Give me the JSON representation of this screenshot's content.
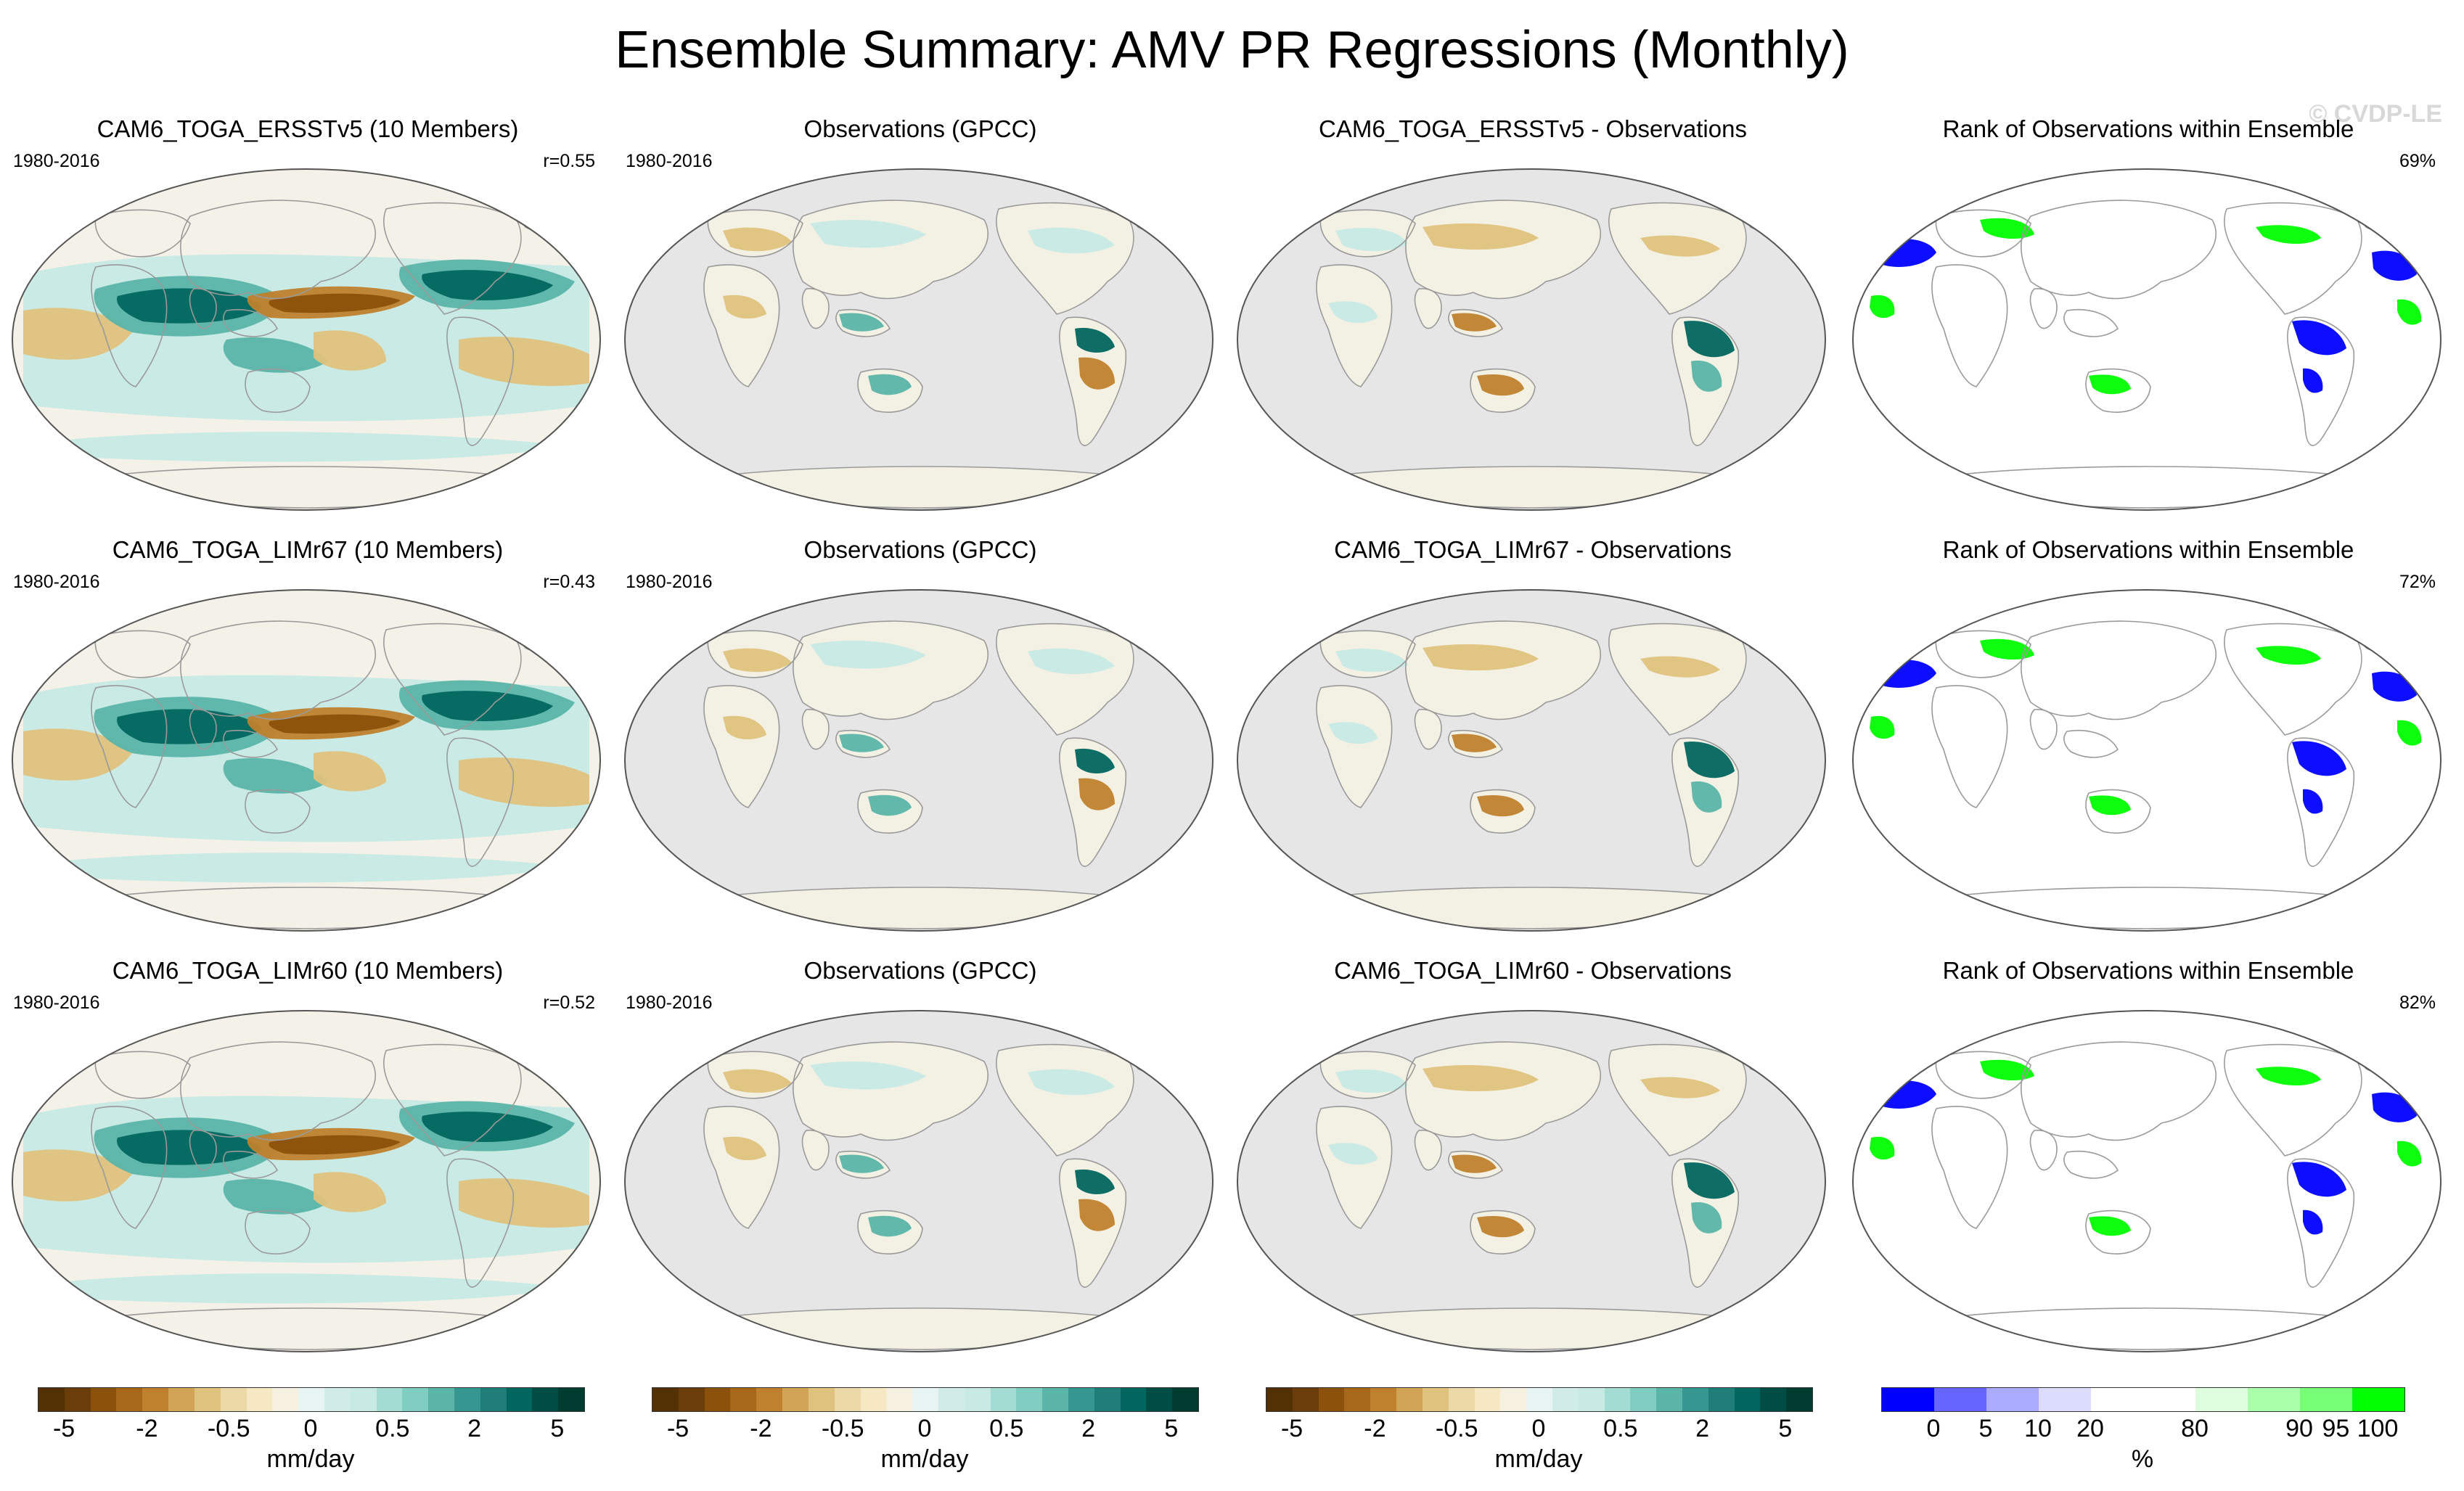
{
  "title": "Ensemble Summary: AMV PR Regressions (Monthly)",
  "watermark": "© CVDP-LE",
  "rows": [
    {
      "panels": [
        {
          "title": "CAM6_TOGA_ERSSTv5 (10 Members)",
          "years": "1980-2016",
          "stat": "r=0.55",
          "kind": "model"
        },
        {
          "title": "Observations (GPCC)",
          "years": "1980-2016",
          "stat": "",
          "kind": "obs"
        },
        {
          "title": "CAM6_TOGA_ERSSTv5 - Observations",
          "years": "",
          "stat": "",
          "kind": "diff"
        },
        {
          "title": "Rank of Observations within Ensemble",
          "years": "",
          "stat": "69%",
          "kind": "rank"
        }
      ]
    },
    {
      "panels": [
        {
          "title": "CAM6_TOGA_LIMr67 (10 Members)",
          "years": "1980-2016",
          "stat": "r=0.43",
          "kind": "model"
        },
        {
          "title": "Observations (GPCC)",
          "years": "1980-2016",
          "stat": "",
          "kind": "obs"
        },
        {
          "title": "CAM6_TOGA_LIMr67 - Observations",
          "years": "",
          "stat": "",
          "kind": "diff"
        },
        {
          "title": "Rank of Observations within Ensemble",
          "years": "",
          "stat": "72%",
          "kind": "rank"
        }
      ]
    },
    {
      "panels": [
        {
          "title": "CAM6_TOGA_LIMr60 (10 Members)",
          "years": "1980-2016",
          "stat": "r=0.52",
          "kind": "model"
        },
        {
          "title": "Observations (GPCC)",
          "years": "1980-2016",
          "stat": "",
          "kind": "obs"
        },
        {
          "title": "CAM6_TOGA_LIMr60 - Observations",
          "years": "",
          "stat": "",
          "kind": "diff"
        },
        {
          "title": "Rank of Observations within Ensemble",
          "years": "",
          "stat": "82%",
          "kind": "rank"
        }
      ]
    }
  ],
  "colorbars": {
    "precip": {
      "colors": [
        "#543005",
        "#6b3d0b",
        "#8c510a",
        "#a6691c",
        "#bf812d",
        "#d2a458",
        "#dfc27d",
        "#ecd9a8",
        "#f6e8c3",
        "#f5f0e0",
        "#e8f4f2",
        "#d0ece8",
        "#c7eae5",
        "#a3dcd3",
        "#80cdc1",
        "#5ab4a8",
        "#35978f",
        "#1f7f78",
        "#01665e",
        "#004d45",
        "#003c30"
      ],
      "ticks": [
        "-5",
        "-2",
        "-0.5",
        "0",
        "0.5",
        "2",
        "5"
      ],
      "unit": "mm/day"
    },
    "rank": {
      "colors": [
        "#0000ff",
        "#6666ff",
        "#aaaaff",
        "#dcdcff",
        "#ffffff",
        "#ffffff",
        "#ddffdd",
        "#aaffaa",
        "#77ff77",
        "#00ff00"
      ],
      "ticks": [
        "0",
        "5",
        "10",
        "20",
        "80",
        "90",
        "95",
        "100"
      ],
      "unit": "%"
    }
  },
  "palette": {
    "land_mask": "#e6e6e6",
    "coast": "#9a9a9a",
    "wet_strong": "#01665e",
    "wet_mid": "#5ab4a8",
    "wet_light": "#c7eae5",
    "dry_strong": "#8c510a",
    "dry_mid": "#bf812d",
    "dry_light": "#dfc27d",
    "rank_low": "#0000ff",
    "rank_high": "#00ff00"
  }
}
